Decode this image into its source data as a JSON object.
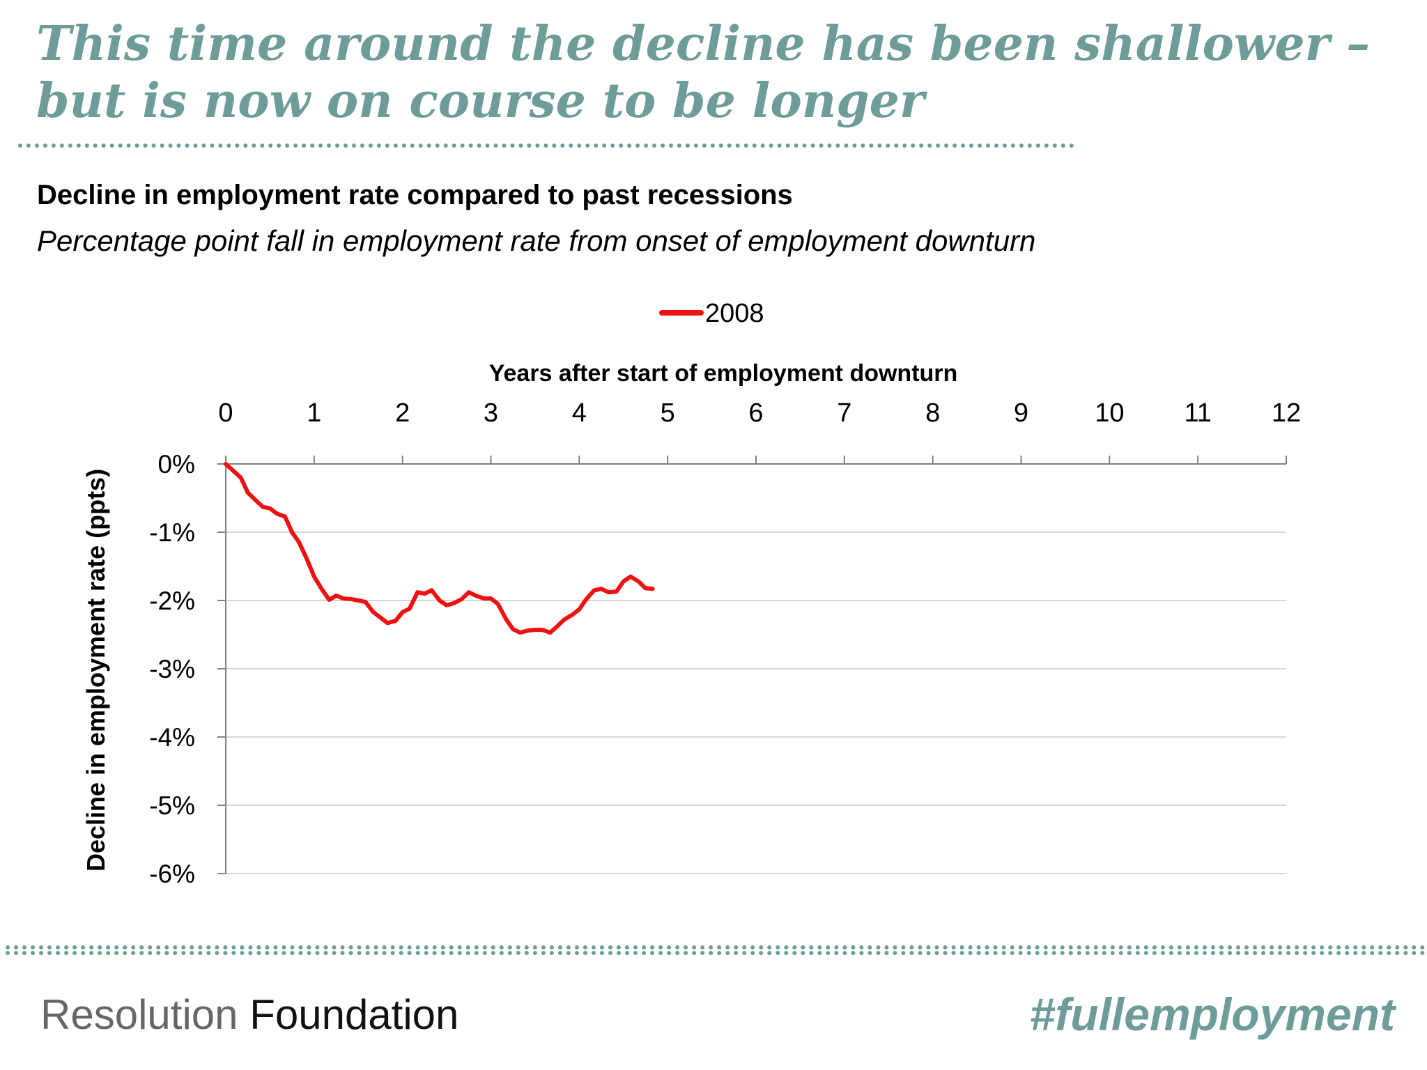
{
  "slide": {
    "title": "This time around the decline has been shallower – but is now on course to be longer"
  },
  "chart_data": {
    "type": "line",
    "title": "Decline in employment rate compared to past recessions",
    "subtitle": "Percentage point fall in employment rate from onset of employment downturn",
    "xlabel": "Years after start of employment downturn",
    "ylabel": "Decline in employment rate (ppts)",
    "x_ticks": [
      "0",
      "1",
      "2",
      "3",
      "4",
      "5",
      "6",
      "7",
      "8",
      "9",
      "10",
      "11",
      "12"
    ],
    "y_ticks": [
      "0%",
      "-1%",
      "-2%",
      "-3%",
      "-4%",
      "-5%",
      "-6%"
    ],
    "xlim": [
      0,
      12
    ],
    "ylim": [
      -6,
      0
    ],
    "grid": true,
    "legend_position": "top-center",
    "series": [
      {
        "name": "2008",
        "color": "#ee1111",
        "x": [
          0,
          0.17,
          0.25,
          0.33,
          0.42,
          0.5,
          0.58,
          0.67,
          0.75,
          0.83,
          0.92,
          1.0,
          1.08,
          1.17,
          1.25,
          1.33,
          1.42,
          1.5,
          1.58,
          1.67,
          1.75,
          1.83,
          1.92,
          2.0,
          2.08,
          2.17,
          2.25,
          2.33,
          2.42,
          2.5,
          2.58,
          2.67,
          2.75,
          2.83,
          2.92,
          3.0,
          3.08,
          3.17,
          3.25,
          3.33,
          3.42,
          3.5,
          3.58,
          3.67,
          3.75,
          3.83,
          3.92,
          4.0,
          4.08,
          4.17,
          4.25,
          4.33,
          4.42,
          4.5,
          4.58,
          4.67,
          4.75,
          4.83
        ],
        "values": [
          0,
          -0.2,
          -0.42,
          -0.52,
          -0.63,
          -0.65,
          -0.73,
          -0.77,
          -1.0,
          -1.15,
          -1.4,
          -1.65,
          -1.82,
          -1.99,
          -1.93,
          -1.97,
          -1.98,
          -2.0,
          -2.02,
          -2.17,
          -2.25,
          -2.33,
          -2.3,
          -2.17,
          -2.12,
          -1.88,
          -1.9,
          -1.85,
          -2.0,
          -2.07,
          -2.04,
          -1.98,
          -1.88,
          -1.93,
          -1.97,
          -1.97,
          -2.05,
          -2.27,
          -2.42,
          -2.47,
          -2.44,
          -2.43,
          -2.43,
          -2.47,
          -2.38,
          -2.28,
          -2.21,
          -2.13,
          -1.98,
          -1.85,
          -1.83,
          -1.88,
          -1.87,
          -1.72,
          -1.65,
          -1.72,
          -1.82,
          -1.83
        ]
      }
    ]
  },
  "footer": {
    "brand_light": "Resolution",
    "brand_dark": "Foundation",
    "hashtag": "#fullemployment"
  }
}
